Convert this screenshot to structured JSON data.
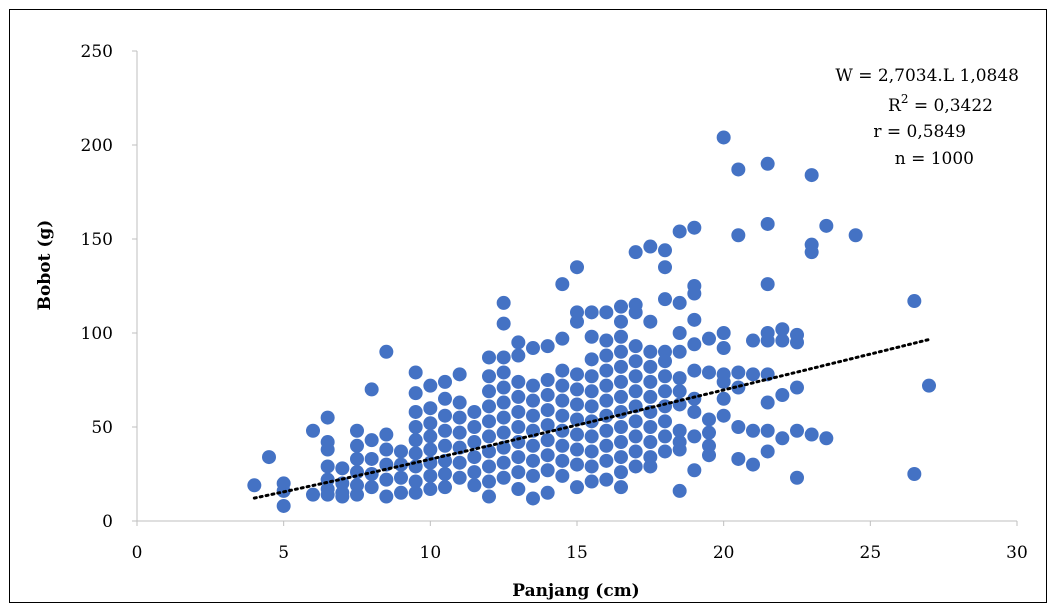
{
  "chart_data": {
    "type": "scatter",
    "title": "",
    "xlabel": "Panjang (cm)",
    "ylabel": "Bobot  (g)",
    "xlim": [
      0,
      30
    ],
    "ylim": [
      0,
      250
    ],
    "xticks": [
      0,
      5,
      10,
      15,
      20,
      25,
      30
    ],
    "yticks": [
      0,
      50,
      100,
      150,
      200,
      250
    ],
    "grid": false,
    "legend": "none",
    "marker_color": "#4472C4",
    "trendline": {
      "type": "power",
      "style": "dotted",
      "color": "#000000",
      "a": 2.7034,
      "b": 1.0848,
      "x_range": [
        4,
        27
      ]
    },
    "annotations": {
      "equation_lhs": "W = 2,7034.L 1,0848",
      "r2_label": "R",
      "r2_sup": "2",
      "r2_value": " = 0,3422",
      "r_text": "r = 0,5849",
      "n_text": "n = 1000"
    },
    "points": [
      [
        4,
        19
      ],
      [
        4.5,
        34
      ],
      [
        5,
        20
      ],
      [
        5,
        16
      ],
      [
        5,
        8
      ],
      [
        6,
        48
      ],
      [
        6,
        14
      ],
      [
        6.5,
        55
      ],
      [
        6.5,
        42
      ],
      [
        6.5,
        38
      ],
      [
        6.5,
        29
      ],
      [
        6.5,
        22
      ],
      [
        6.5,
        17
      ],
      [
        6.5,
        14
      ],
      [
        7,
        28
      ],
      [
        7,
        20
      ],
      [
        7,
        15
      ],
      [
        7,
        13
      ],
      [
        7.5,
        48
      ],
      [
        7.5,
        40
      ],
      [
        7.5,
        33
      ],
      [
        7.5,
        26
      ],
      [
        7.5,
        19
      ],
      [
        7.5,
        14
      ],
      [
        8,
        70
      ],
      [
        8,
        43
      ],
      [
        8,
        33
      ],
      [
        8,
        25
      ],
      [
        8,
        18
      ],
      [
        8.5,
        90
      ],
      [
        8.5,
        46
      ],
      [
        8.5,
        38
      ],
      [
        8.5,
        30
      ],
      [
        8.5,
        22
      ],
      [
        8.5,
        13
      ],
      [
        9,
        37
      ],
      [
        9,
        30
      ],
      [
        9,
        23
      ],
      [
        9,
        15
      ],
      [
        9.5,
        79
      ],
      [
        9.5,
        68
      ],
      [
        9.5,
        58
      ],
      [
        9.5,
        50
      ],
      [
        9.5,
        43
      ],
      [
        9.5,
        36
      ],
      [
        9.5,
        29
      ],
      [
        9.5,
        21
      ],
      [
        9.5,
        15
      ],
      [
        10,
        72
      ],
      [
        10,
        60
      ],
      [
        10,
        52
      ],
      [
        10,
        45
      ],
      [
        10,
        38
      ],
      [
        10,
        31
      ],
      [
        10,
        24
      ],
      [
        10,
        17
      ],
      [
        10.5,
        74
      ],
      [
        10.5,
        65
      ],
      [
        10.5,
        56
      ],
      [
        10.5,
        48
      ],
      [
        10.5,
        40
      ],
      [
        10.5,
        32
      ],
      [
        10.5,
        25
      ],
      [
        10.5,
        18
      ],
      [
        11,
        78
      ],
      [
        11,
        63
      ],
      [
        11,
        55
      ],
      [
        11,
        47
      ],
      [
        11,
        39
      ],
      [
        11,
        31
      ],
      [
        11,
        23
      ],
      [
        11.5,
        58
      ],
      [
        11.5,
        50
      ],
      [
        11.5,
        42
      ],
      [
        11.5,
        34
      ],
      [
        11.5,
        26
      ],
      [
        11.5,
        19
      ],
      [
        12,
        87
      ],
      [
        12,
        77
      ],
      [
        12,
        69
      ],
      [
        12,
        61
      ],
      [
        12,
        53
      ],
      [
        12,
        45
      ],
      [
        12,
        37
      ],
      [
        12,
        29
      ],
      [
        12,
        21
      ],
      [
        12,
        13
      ],
      [
        12.5,
        116
      ],
      [
        12.5,
        105
      ],
      [
        12.5,
        87
      ],
      [
        12.5,
        79
      ],
      [
        12.5,
        71
      ],
      [
        12.5,
        63
      ],
      [
        12.5,
        55
      ],
      [
        12.5,
        47
      ],
      [
        12.5,
        39
      ],
      [
        12.5,
        31
      ],
      [
        12.5,
        23
      ],
      [
        13,
        95
      ],
      [
        13,
        88
      ],
      [
        13,
        74
      ],
      [
        13,
        66
      ],
      [
        13,
        58
      ],
      [
        13,
        50
      ],
      [
        13,
        42
      ],
      [
        13,
        34
      ],
      [
        13,
        26
      ],
      [
        13,
        17
      ],
      [
        13.5,
        92
      ],
      [
        13.5,
        72
      ],
      [
        13.5,
        64
      ],
      [
        13.5,
        56
      ],
      [
        13.5,
        48
      ],
      [
        13.5,
        40
      ],
      [
        13.5,
        32
      ],
      [
        13.5,
        24
      ],
      [
        13.5,
        12
      ],
      [
        14,
        93
      ],
      [
        14,
        75
      ],
      [
        14,
        67
      ],
      [
        14,
        59
      ],
      [
        14,
        51
      ],
      [
        14,
        43
      ],
      [
        14,
        35
      ],
      [
        14,
        27
      ],
      [
        14,
        15
      ],
      [
        14.5,
        126
      ],
      [
        14.5,
        97
      ],
      [
        14.5,
        80
      ],
      [
        14.5,
        72
      ],
      [
        14.5,
        64
      ],
      [
        14.5,
        56
      ],
      [
        14.5,
        48
      ],
      [
        14.5,
        40
      ],
      [
        14.5,
        32
      ],
      [
        14.5,
        24
      ],
      [
        15,
        135
      ],
      [
        15,
        111
      ],
      [
        15,
        106
      ],
      [
        15,
        78
      ],
      [
        15,
        70
      ],
      [
        15,
        62
      ],
      [
        15,
        54
      ],
      [
        15,
        46
      ],
      [
        15,
        38
      ],
      [
        15,
        30
      ],
      [
        15,
        18
      ],
      [
        15.5,
        111
      ],
      [
        15.5,
        98
      ],
      [
        15.5,
        86
      ],
      [
        15.5,
        77
      ],
      [
        15.5,
        69
      ],
      [
        15.5,
        61
      ],
      [
        15.5,
        53
      ],
      [
        15.5,
        45
      ],
      [
        15.5,
        37
      ],
      [
        15.5,
        29
      ],
      [
        15.5,
        21
      ],
      [
        16,
        111
      ],
      [
        16,
        96
      ],
      [
        16,
        88
      ],
      [
        16,
        80
      ],
      [
        16,
        72
      ],
      [
        16,
        64
      ],
      [
        16,
        56
      ],
      [
        16,
        48
      ],
      [
        16,
        40
      ],
      [
        16,
        32
      ],
      [
        16,
        22
      ],
      [
        16.5,
        114
      ],
      [
        16.5,
        106
      ],
      [
        16.5,
        98
      ],
      [
        16.5,
        90
      ],
      [
        16.5,
        82
      ],
      [
        16.5,
        74
      ],
      [
        16.5,
        66
      ],
      [
        16.5,
        58
      ],
      [
        16.5,
        50
      ],
      [
        16.5,
        42
      ],
      [
        16.5,
        34
      ],
      [
        16.5,
        26
      ],
      [
        16.5,
        18
      ],
      [
        17,
        143
      ],
      [
        17,
        115
      ],
      [
        17,
        111
      ],
      [
        17,
        93
      ],
      [
        17,
        85
      ],
      [
        17,
        77
      ],
      [
        17,
        69
      ],
      [
        17,
        61
      ],
      [
        17,
        53
      ],
      [
        17,
        45
      ],
      [
        17,
        37
      ],
      [
        17,
        29
      ],
      [
        17.5,
        146
      ],
      [
        17.5,
        106
      ],
      [
        17.5,
        90
      ],
      [
        17.5,
        82
      ],
      [
        17.5,
        74
      ],
      [
        17.5,
        66
      ],
      [
        17.5,
        58
      ],
      [
        17.5,
        50
      ],
      [
        17.5,
        42
      ],
      [
        17.5,
        34
      ],
      [
        17.5,
        29
      ],
      [
        18,
        144
      ],
      [
        18,
        135
      ],
      [
        18,
        118
      ],
      [
        18,
        90
      ],
      [
        18,
        85
      ],
      [
        18,
        77
      ],
      [
        18,
        69
      ],
      [
        18,
        61
      ],
      [
        18,
        53
      ],
      [
        18,
        45
      ],
      [
        18,
        37
      ],
      [
        18.5,
        154
      ],
      [
        18.5,
        116
      ],
      [
        18.5,
        100
      ],
      [
        18.5,
        90
      ],
      [
        18.5,
        76
      ],
      [
        18.5,
        69
      ],
      [
        18.5,
        62
      ],
      [
        18.5,
        48
      ],
      [
        18.5,
        42
      ],
      [
        18.5,
        38
      ],
      [
        18.5,
        16
      ],
      [
        19,
        156
      ],
      [
        19,
        125
      ],
      [
        19,
        121
      ],
      [
        19,
        107
      ],
      [
        19,
        94
      ],
      [
        19,
        80
      ],
      [
        19,
        65
      ],
      [
        19,
        58
      ],
      [
        19,
        45
      ],
      [
        19,
        27
      ],
      [
        19.5,
        97
      ],
      [
        19.5,
        79
      ],
      [
        19.5,
        54
      ],
      [
        19.5,
        47
      ],
      [
        19.5,
        40
      ],
      [
        19.5,
        35
      ],
      [
        20,
        204
      ],
      [
        20,
        100
      ],
      [
        20,
        92
      ],
      [
        20,
        78
      ],
      [
        20,
        74
      ],
      [
        20,
        65
      ],
      [
        20,
        56
      ],
      [
        20.5,
        187
      ],
      [
        20.5,
        152
      ],
      [
        20.5,
        79
      ],
      [
        20.5,
        71
      ],
      [
        20.5,
        50
      ],
      [
        20.5,
        33
      ],
      [
        21,
        96
      ],
      [
        21,
        78
      ],
      [
        21,
        48
      ],
      [
        21,
        30
      ],
      [
        21.5,
        190
      ],
      [
        21.5,
        158
      ],
      [
        21.5,
        126
      ],
      [
        21.5,
        100
      ],
      [
        21.5,
        96
      ],
      [
        21.5,
        78
      ],
      [
        21.5,
        63
      ],
      [
        21.5,
        48
      ],
      [
        21.5,
        37
      ],
      [
        22,
        102
      ],
      [
        22,
        96
      ],
      [
        22,
        67
      ],
      [
        22,
        44
      ],
      [
        22.5,
        99
      ],
      [
        22.5,
        95
      ],
      [
        22.5,
        71
      ],
      [
        22.5,
        48
      ],
      [
        22.5,
        23
      ],
      [
        23,
        184
      ],
      [
        23,
        147
      ],
      [
        23,
        143
      ],
      [
        23,
        46
      ],
      [
        23.5,
        157
      ],
      [
        23.5,
        44
      ],
      [
        24.5,
        152
      ],
      [
        26.5,
        117
      ],
      [
        26.5,
        25
      ],
      [
        27,
        72
      ]
    ]
  }
}
